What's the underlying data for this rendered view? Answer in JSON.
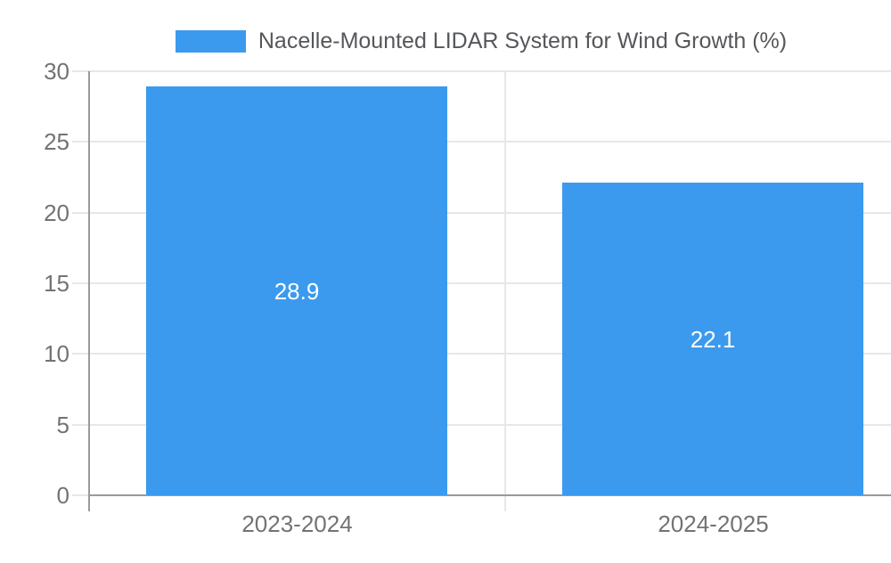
{
  "chart_data": {
    "type": "bar",
    "title": "Nacelle-Mounted LIDAR System for Wind Growth (%)",
    "categories": [
      "2023-2024",
      "2024-2025"
    ],
    "values": [
      28.9,
      22.1
    ],
    "data_labels": [
      "28.9",
      "22.1"
    ],
    "ylim": [
      0,
      30
    ],
    "yticks": [
      0,
      5,
      10,
      15,
      20,
      25,
      30
    ],
    "ytick_labels": [
      "0",
      "5",
      "10",
      "15",
      "20",
      "25",
      "30"
    ],
    "xlabel": "",
    "ylabel": "",
    "grid": true,
    "legend_position": "top",
    "legend_items": [
      {
        "label": "Nacelle-Mounted LIDAR System for Wind Growth (%)",
        "color": "#3B9AEE"
      }
    ]
  },
  "colors": {
    "background": "#FFFFFF",
    "bar": "#3B9AEE",
    "grid_line": "#E7E7E7",
    "axis_line": "#9A9A9A",
    "tick_text": "#737373",
    "title_text": "#55575A",
    "data_label_text": "#FFFFFF"
  }
}
